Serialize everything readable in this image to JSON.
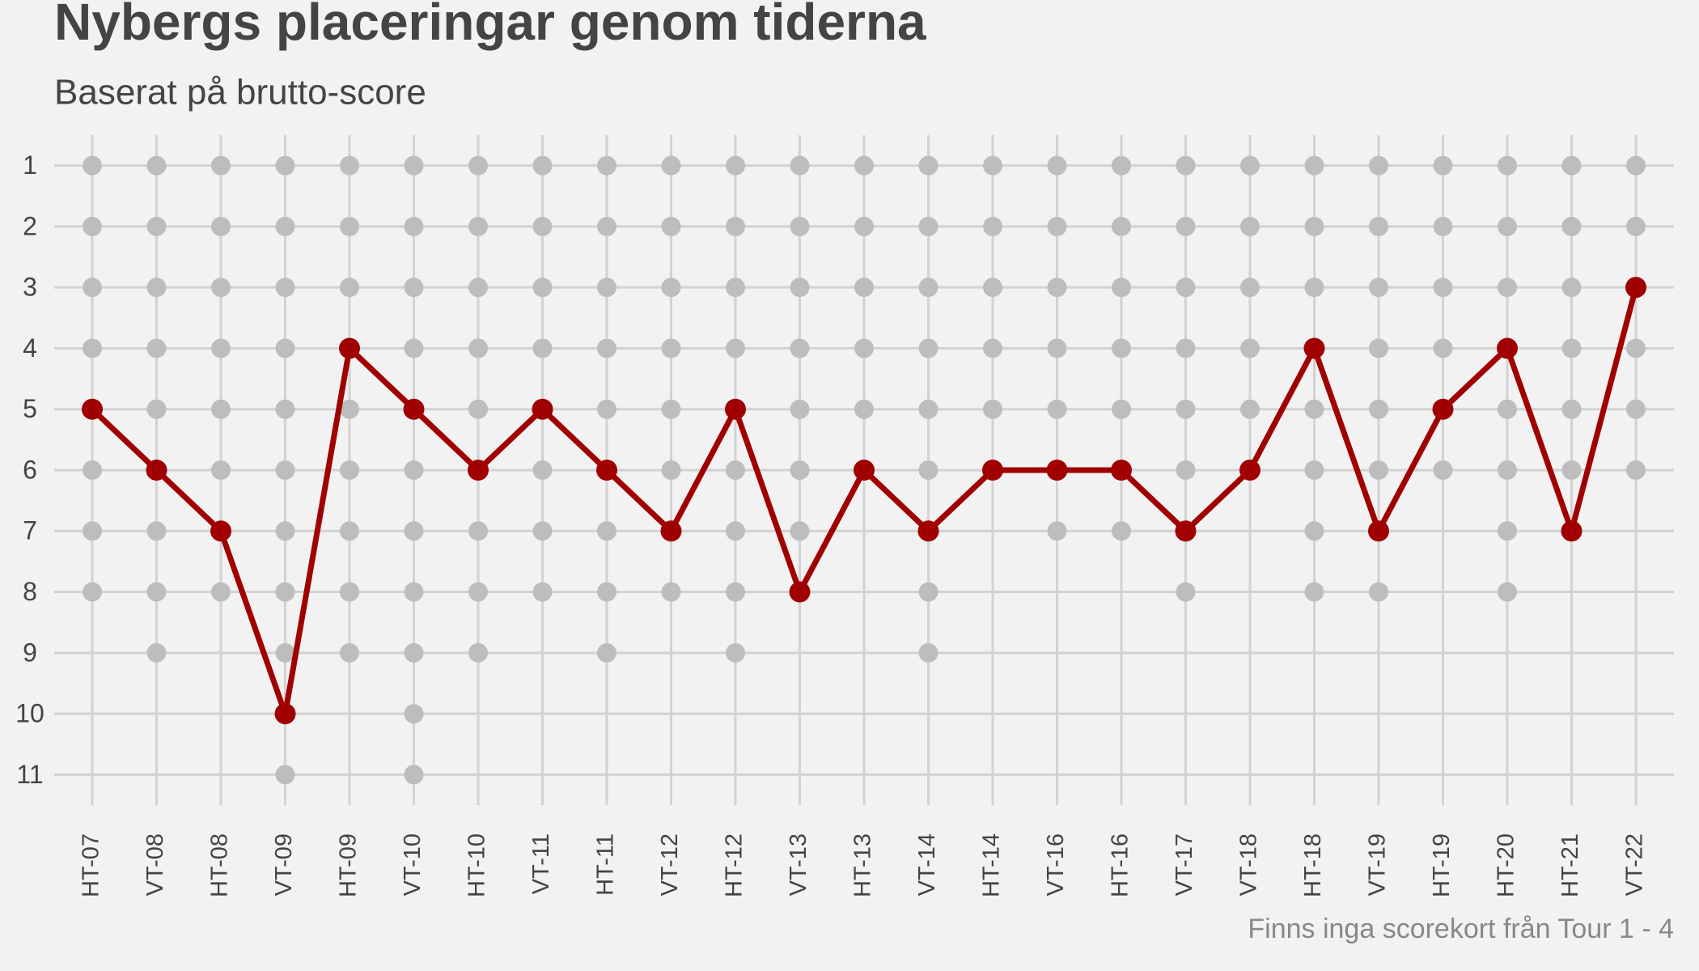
{
  "chart_data": {
    "type": "line",
    "title": "Nybergs placeringar genom tiderna",
    "subtitle": "Baserat på brutto-score",
    "caption": "Finns inga scorekort från Tour 1 - 4",
    "categories": [
      "HT-07",
      "VT-08",
      "HT-08",
      "VT-09",
      "HT-09",
      "VT-10",
      "HT-10",
      "VT-11",
      "HT-11",
      "VT-12",
      "HT-12",
      "VT-13",
      "HT-13",
      "VT-14",
      "HT-14",
      "VT-16",
      "HT-16",
      "VT-17",
      "VT-18",
      "HT-18",
      "VT-19",
      "HT-19",
      "HT-20",
      "HT-21",
      "VT-22"
    ],
    "values": [
      5,
      6,
      7,
      10,
      4,
      5,
      6,
      5,
      6,
      7,
      5,
      8,
      6,
      7,
      6,
      6,
      6,
      7,
      6,
      4,
      7,
      5,
      4,
      7,
      3
    ],
    "color": "#a00000",
    "participants": [
      8,
      9,
      8,
      11,
      9,
      11,
      9,
      8,
      9,
      8,
      9,
      8,
      6,
      9,
      6,
      7,
      7,
      8,
      6,
      8,
      8,
      6,
      8,
      7,
      6
    ],
    "participants_color": "#bdbdbd",
    "ylim": [
      11.5,
      0.5
    ],
    "yticks": [
      1,
      2,
      3,
      4,
      5,
      6,
      7,
      8,
      9,
      10,
      11
    ],
    "grid": true
  }
}
